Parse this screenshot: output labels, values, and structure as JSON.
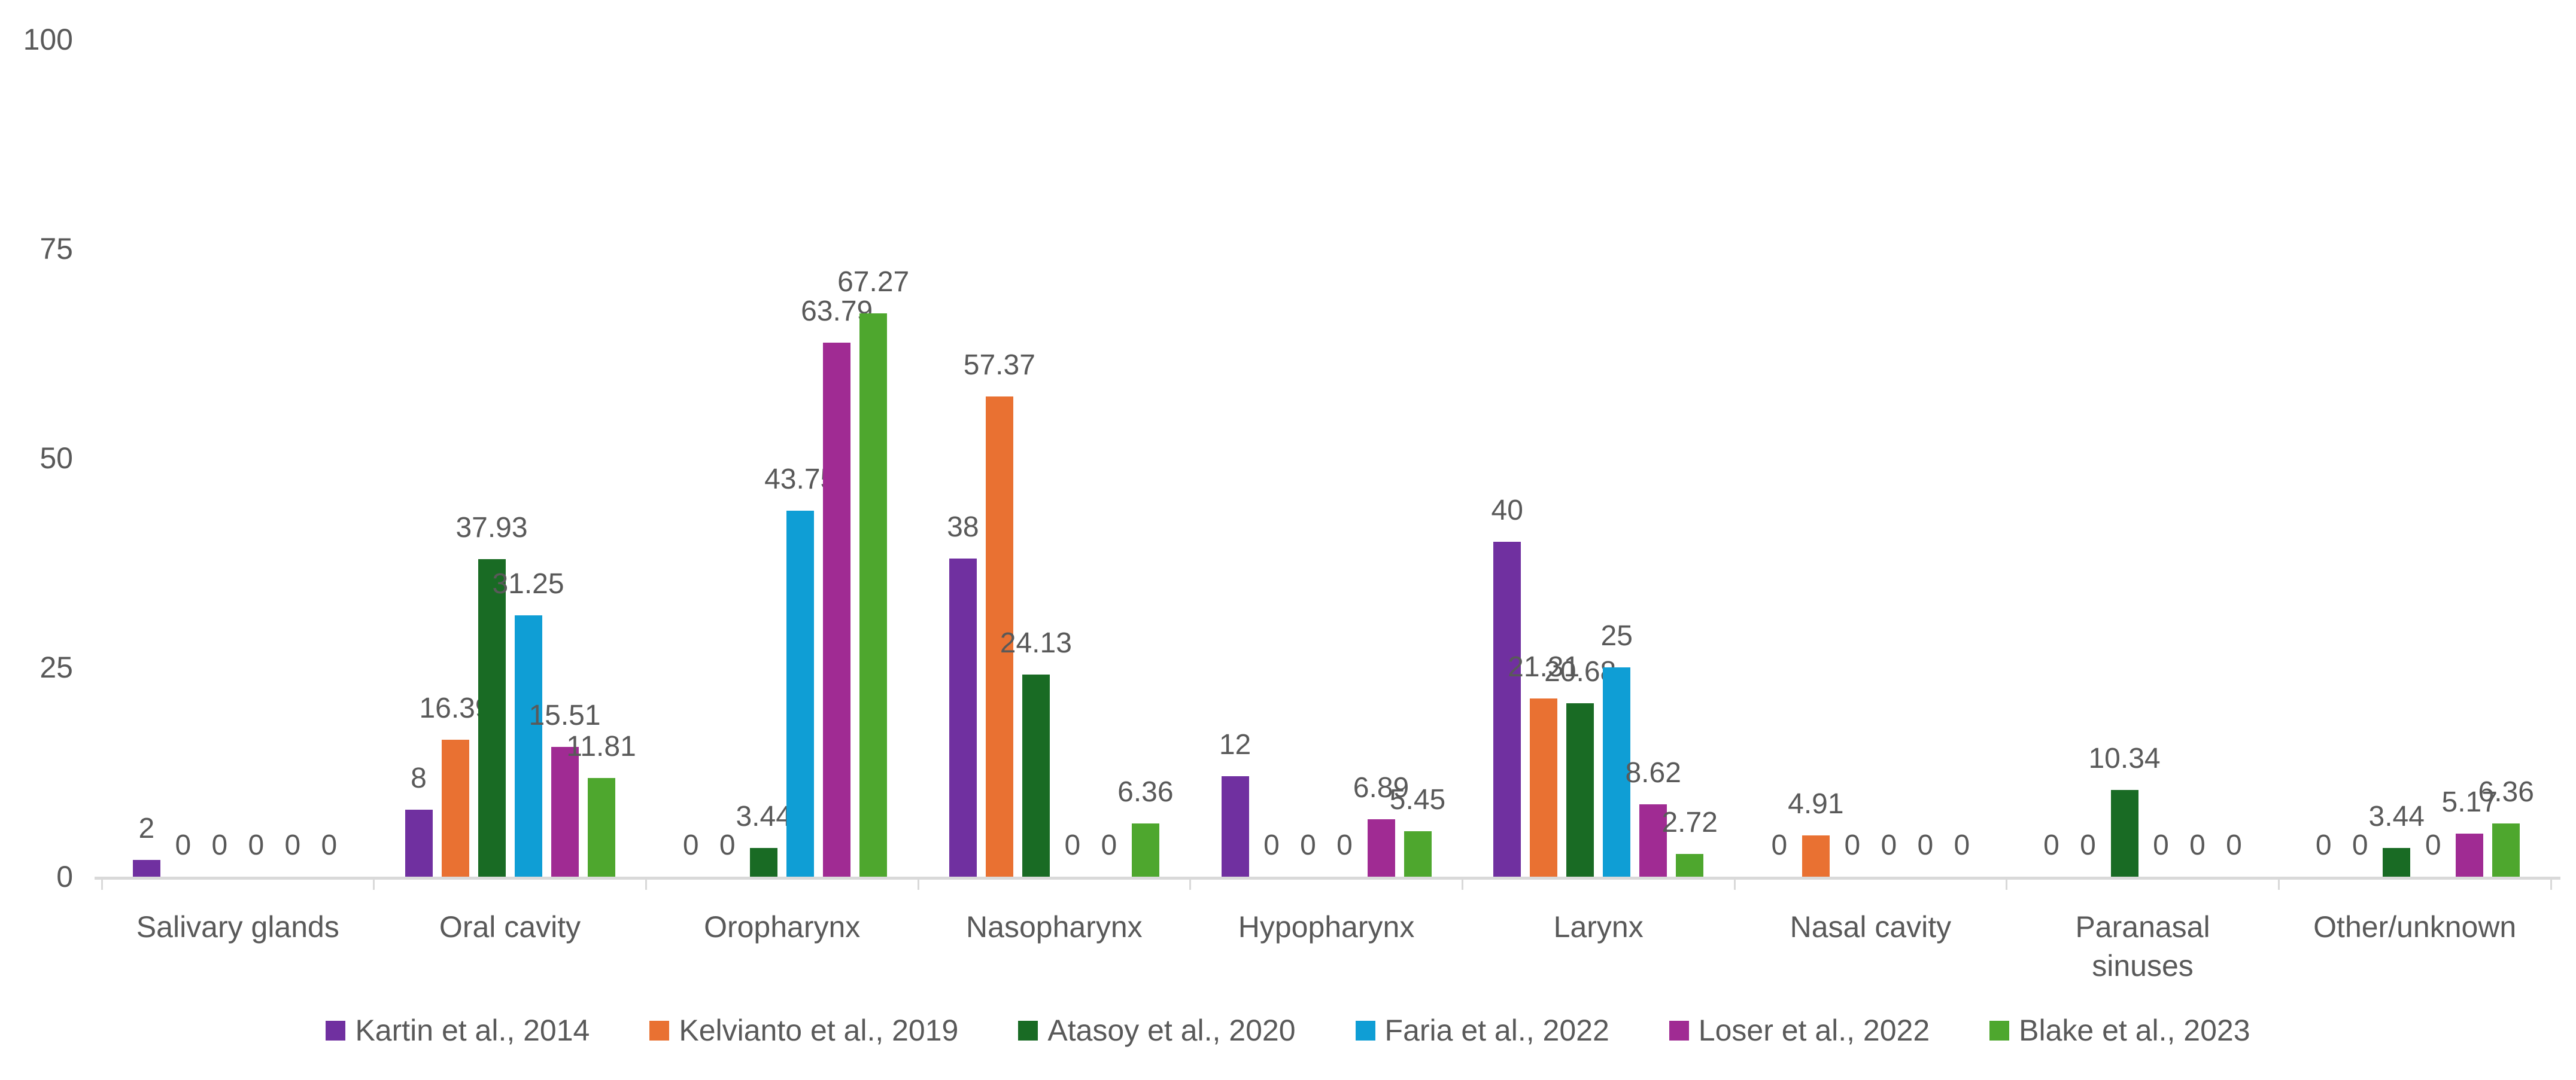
{
  "chart_data": {
    "type": "bar",
    "title": "",
    "xlabel": "",
    "ylabel": "",
    "categories": [
      "Salivary glands",
      "Oral cavity",
      "Oropharynx",
      "Nasopharynx",
      "Hypopharynx",
      "Larynx",
      "Nasal cavity",
      "Paranasal sinuses",
      "Other/unknown"
    ],
    "category_display": [
      "Salivary glands",
      "Oral cavity",
      "Oropharynx",
      "Nasopharynx",
      "Hypopharynx",
      "Larynx",
      "Nasal cavity",
      "Paranasal\nsinuses",
      "Other/unknown"
    ],
    "series": [
      {
        "name": "Kartin et al., 2014",
        "color": "#7030A0",
        "values": [
          2,
          8,
          0,
          38,
          12,
          40,
          0,
          0,
          0
        ]
      },
      {
        "name": "Kelvianto et al., 2019",
        "color": "#E97132",
        "values": [
          0,
          16.39,
          0,
          57.37,
          0,
          21.31,
          4.91,
          0,
          0
        ]
      },
      {
        "name": "Atasoy et al., 2020",
        "color": "#196B24",
        "values": [
          0,
          37.93,
          3.44,
          24.13,
          0,
          20.68,
          0,
          10.34,
          3.44
        ]
      },
      {
        "name": "Faria et al., 2022",
        "color": "#0F9ED5",
        "values": [
          0,
          31.25,
          43.75,
          0,
          0,
          25,
          0,
          0,
          0
        ]
      },
      {
        "name": "Loser et al., 2022",
        "color": "#A02B93",
        "values": [
          0,
          15.51,
          63.79,
          0,
          6.89,
          8.62,
          0,
          0,
          5.17
        ]
      },
      {
        "name": "Blake et al., 2023",
        "color": "#4EA72E",
        "values": [
          0,
          11.81,
          67.27,
          6.36,
          5.45,
          2.72,
          0,
          0,
          6.36
        ]
      }
    ],
    "y_axis": {
      "min": 0,
      "max": 100,
      "ticks": [
        0,
        25,
        50,
        75,
        100
      ]
    },
    "grid": false,
    "data_labels": true,
    "legend_position": "bottom",
    "colors": {
      "text": "#595959",
      "axis_line": "#D9D9D9"
    }
  }
}
